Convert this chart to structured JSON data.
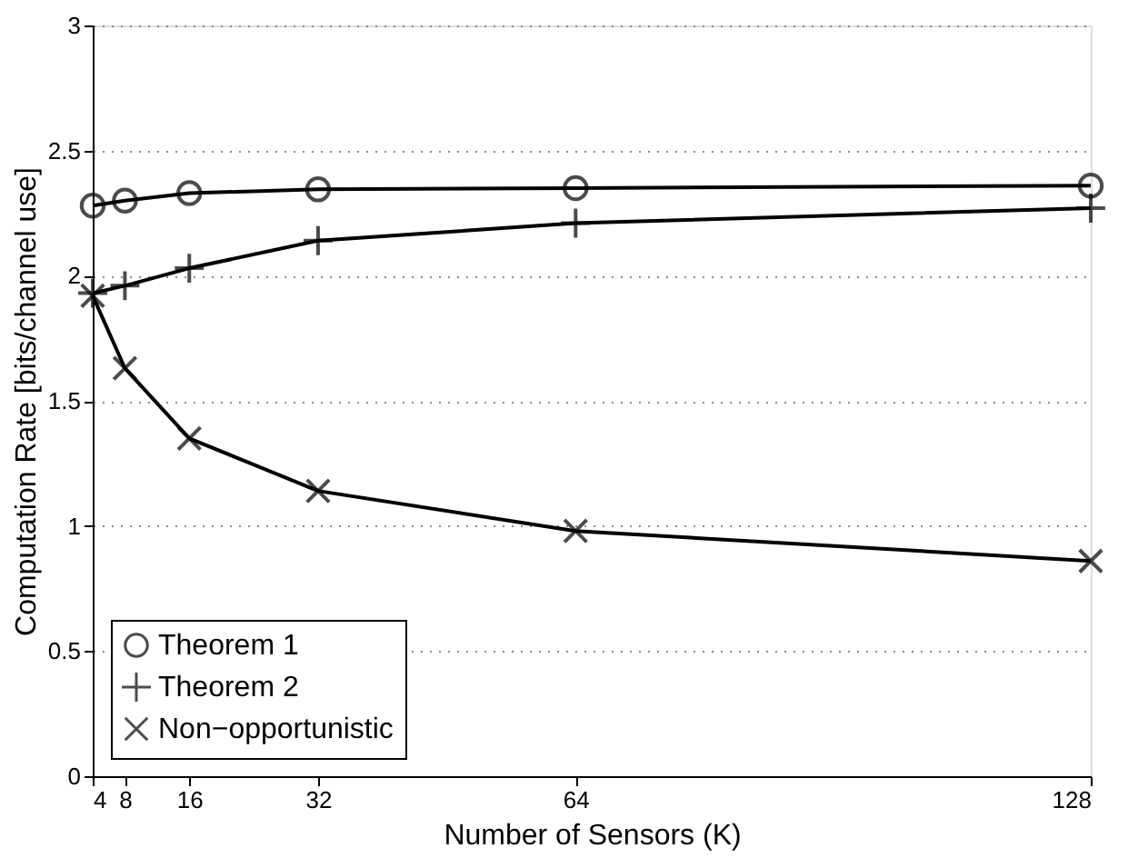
{
  "chart_data": {
    "type": "line",
    "xlabel": "Number of Sensors (K)",
    "ylabel": "Computation Rate [bits/channel use]",
    "x": [
      4,
      8,
      16,
      32,
      64,
      128
    ],
    "series": [
      {
        "name": "Theorem 1",
        "color": "#000000",
        "marker": "circle",
        "values": [
          2.28,
          2.3,
          2.33,
          2.345,
          2.35,
          2.36
        ]
      },
      {
        "name": "Theorem 2",
        "color": "#000000",
        "marker": "plus",
        "values": [
          1.93,
          1.96,
          2.03,
          2.14,
          2.21,
          2.27
        ]
      },
      {
        "name": "Non−opportunistic",
        "color": "#000000",
        "marker": "cross",
        "values": [
          1.92,
          1.63,
          1.35,
          1.14,
          0.98,
          0.86
        ]
      }
    ],
    "xlim": [
      4,
      128
    ],
    "xticks": [
      4,
      8,
      16,
      32,
      64,
      128
    ],
    "ylim": [
      0,
      3
    ],
    "yticks": [
      0,
      0.5,
      1,
      1.5,
      2,
      2.5,
      3
    ],
    "grid": "y",
    "legend": "bottom left",
    "line_style": "solid"
  }
}
